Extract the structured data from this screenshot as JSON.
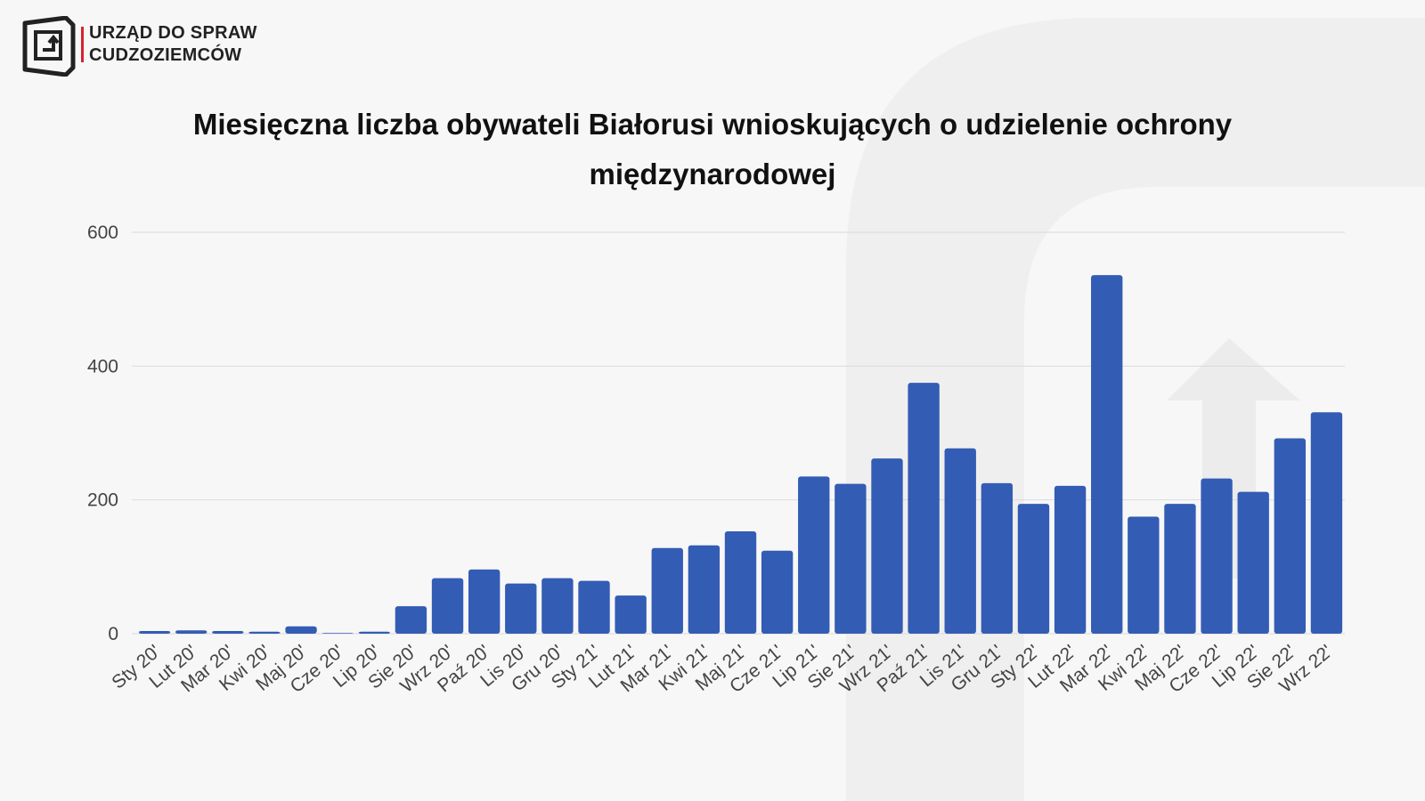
{
  "header": {
    "org_lines": [
      "URZĄD DO SPRAW",
      "CUDZOZIEMCÓW"
    ]
  },
  "chart_data": {
    "type": "bar",
    "title": "Miesięczna liczba obywateli Białorusi wnioskujących o udzielenie ochrony międzynarodowej",
    "categories": [
      "Sty 20'",
      "Lut 20'",
      "Mar 20'",
      "Kwi 20'",
      "Maj 20'",
      "Cze 20'",
      "Lip 20'",
      "Sie 20'",
      "Wrz 20'",
      "Paź 20'",
      "Lis 20'",
      "Gru 20'",
      "Sty 21'",
      "Lut 21'",
      "Mar 21'",
      "Kwi 21'",
      "Maj 21'",
      "Cze 21'",
      "Lip 21'",
      "Sie 21'",
      "Wrz 21'",
      "Paź 21'",
      "Lis 21'",
      "Gru 21'",
      "Sty 22'",
      "Lut 22'",
      "Mar 22'",
      "Kwi 22'",
      "Maj 22'",
      "Cze 22'",
      "Lip 22'",
      "Sie 22'",
      "Wrz 22'"
    ],
    "values": [
      4,
      5,
      4,
      3,
      11,
      1,
      3,
      41,
      83,
      96,
      75,
      83,
      79,
      57,
      128,
      132,
      153,
      124,
      235,
      224,
      262,
      375,
      277,
      225,
      194,
      221,
      536,
      175,
      194,
      232,
      212,
      292,
      331
    ],
    "color": "#335cb4",
    "ylim": [
      0,
      600
    ],
    "yticks": [
      0,
      200,
      400,
      600
    ],
    "grid": true
  }
}
